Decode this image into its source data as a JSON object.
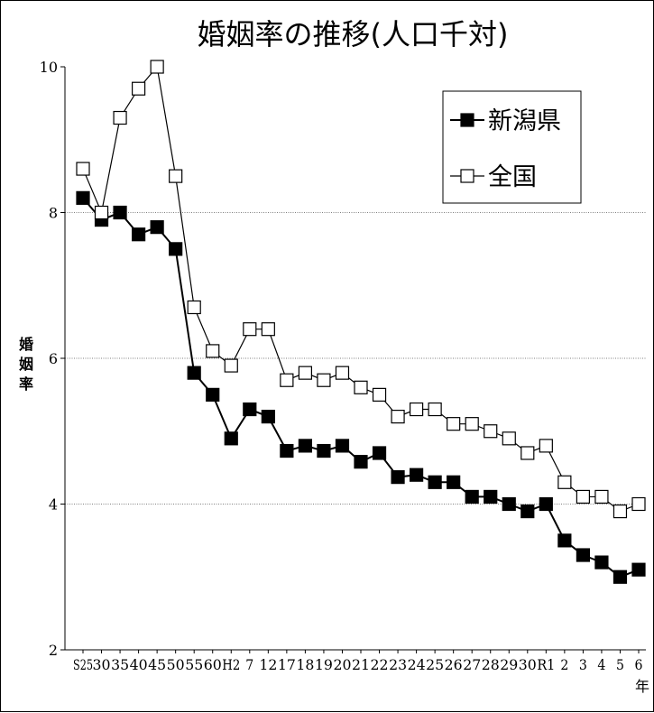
{
  "chart_data": {
    "type": "line",
    "title": "婚姻率の推移(人口千対)",
    "ylabel": "婚姻率",
    "x_unit": "年",
    "ylim": [
      2,
      10
    ],
    "yticks": [
      "2",
      "4",
      "6",
      "8",
      "10"
    ],
    "grid": "horizontal dotted at 4, 6, 8",
    "legend_position": "top-right",
    "categories": [
      "S25",
      "30",
      "35",
      "40",
      "45",
      "50",
      "55",
      "60",
      "H2",
      "7",
      "12",
      "17",
      "18",
      "19",
      "20",
      "21",
      "22",
      "23",
      "24",
      "25",
      "26",
      "27",
      "28",
      "29",
      "30",
      "R1",
      "2",
      "3",
      "4",
      "5",
      "6"
    ],
    "series": [
      {
        "name": "新潟県",
        "marker": "filled-square",
        "color": "#000000",
        "values": [
          8.2,
          7.9,
          8.0,
          7.7,
          7.8,
          7.5,
          5.8,
          5.5,
          4.9,
          5.3,
          5.2,
          4.73,
          4.8,
          4.73,
          4.8,
          4.58,
          4.7,
          4.37,
          4.4,
          4.3,
          4.3,
          4.1,
          4.1,
          4.0,
          3.9,
          4.0,
          3.5,
          3.3,
          3.2,
          3.0,
          3.1
        ]
      },
      {
        "name": "全国",
        "marker": "open-square",
        "color": "#000000",
        "values": [
          8.6,
          8.0,
          9.3,
          9.7,
          10.0,
          8.5,
          6.7,
          6.1,
          5.9,
          6.4,
          6.4,
          5.7,
          5.8,
          5.7,
          5.8,
          5.6,
          5.5,
          5.2,
          5.3,
          5.3,
          5.1,
          5.1,
          5.0,
          4.9,
          4.7,
          4.8,
          4.3,
          4.1,
          4.1,
          3.9,
          4.0
        ]
      }
    ]
  }
}
